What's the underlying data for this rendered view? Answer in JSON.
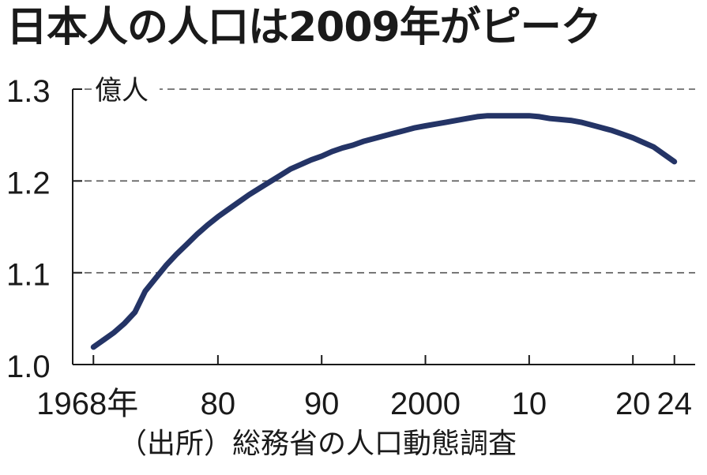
{
  "title": "日本人の人口は2009年がピーク",
  "source": "（出所）総務省の人口動態調査",
  "chart_data": {
    "type": "line",
    "title": "日本人の人口は2009年がピーク",
    "ylabel": "億人",
    "xlabel": "",
    "ylim": [
      1.0,
      1.3
    ],
    "xlim": [
      1966,
      2026
    ],
    "grid": "horizontal dashed",
    "yticks": [
      {
        "value": 1.0,
        "label": "1.0"
      },
      {
        "value": 1.1,
        "label": "1.1"
      },
      {
        "value": 1.2,
        "label": "1.2"
      },
      {
        "value": 1.3,
        "label": "1.3"
      }
    ],
    "xticks": [
      {
        "value": 1968,
        "label": "1968年"
      },
      {
        "value": 1980,
        "label": "80"
      },
      {
        "value": 1990,
        "label": "90"
      },
      {
        "value": 2000,
        "label": "2000"
      },
      {
        "value": 2010,
        "label": "10"
      },
      {
        "value": 2020,
        "label": "20"
      },
      {
        "value": 2024,
        "label": "24"
      }
    ],
    "series": [
      {
        "color": "#243466",
        "x": [
          1968,
          1969,
          1970,
          1971,
          1972,
          1973,
          1974,
          1975,
          1976,
          1977,
          1978,
          1979,
          1980,
          1981,
          1982,
          1983,
          1984,
          1985,
          1986,
          1987,
          1988,
          1989,
          1990,
          1991,
          1992,
          1993,
          1994,
          1995,
          1996,
          1997,
          1998,
          1999,
          2000,
          2001,
          2002,
          2003,
          2004,
          2005,
          2006,
          2007,
          2008,
          2009,
          2010,
          2011,
          2012,
          2013,
          2014,
          2015,
          2016,
          2017,
          2018,
          2019,
          2020,
          2021,
          2022,
          2023,
          2024
        ],
        "values": [
          1.019,
          1.027,
          1.035,
          1.045,
          1.057,
          1.08,
          1.094,
          1.108,
          1.12,
          1.131,
          1.142,
          1.152,
          1.161,
          1.169,
          1.177,
          1.185,
          1.192,
          1.199,
          1.206,
          1.213,
          1.218,
          1.223,
          1.227,
          1.232,
          1.236,
          1.239,
          1.243,
          1.246,
          1.249,
          1.252,
          1.255,
          1.258,
          1.26,
          1.262,
          1.264,
          1.266,
          1.268,
          1.27,
          1.271,
          1.271,
          1.271,
          1.271,
          1.271,
          1.27,
          1.268,
          1.267,
          1.266,
          1.264,
          1.261,
          1.258,
          1.255,
          1.251,
          1.247,
          1.242,
          1.237,
          1.229,
          1.221
        ]
      }
    ]
  }
}
